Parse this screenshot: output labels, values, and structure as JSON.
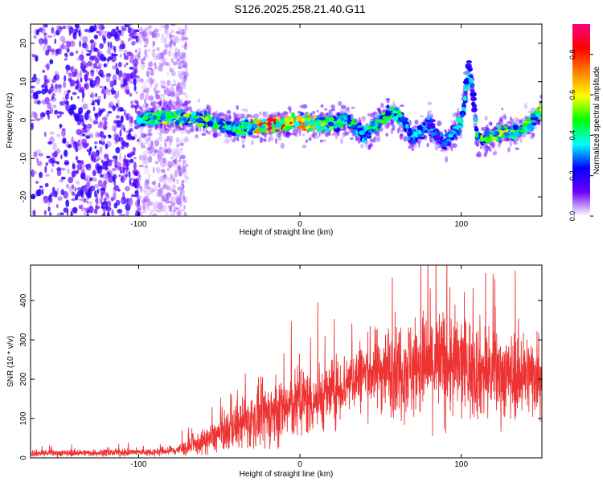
{
  "title": "S126.2025.258.21.40.G11",
  "chart_data": [
    {
      "type": "heatmap",
      "title": "S126.2025.258.21.40.G11",
      "xlabel": "Height of straight line (km)",
      "ylabel": "Frequency (Hz)",
      "xlim": [
        -167,
        150
      ],
      "ylim": [
        -25,
        25
      ],
      "xticks": [
        -100,
        0,
        100
      ],
      "yticks": [
        -20,
        -10,
        0,
        10,
        20
      ],
      "colorbar": {
        "label": "Normalized spectral amplitude",
        "range": [
          0.0,
          0.95
        ],
        "ticks": [
          0.0,
          0.2,
          0.4,
          0.6,
          0.8
        ],
        "tick_labels": [
          "0.0",
          "0.2",
          "0.4",
          "0.6",
          "0.8"
        ],
        "colors": [
          "#ffffff",
          "#6f00ff",
          "#0000ff",
          "#00ffff",
          "#00ff00",
          "#ffff00",
          "#ff8000",
          "#ff0000",
          "#ff0080"
        ]
      },
      "noise_region_x": [
        -167,
        -80
      ],
      "ridge": {
        "x": [
          -100,
          -90,
          -80,
          -70,
          -60,
          -50,
          -40,
          -30,
          -20,
          -10,
          0,
          10,
          20,
          28,
          30,
          35,
          40,
          45,
          50,
          55,
          60,
          65,
          70,
          75,
          80,
          85,
          90,
          95,
          100,
          103,
          105,
          108,
          110,
          115,
          120,
          125,
          130,
          135,
          140,
          145,
          150
        ],
        "freq": [
          0,
          0.5,
          1,
          0.5,
          0,
          -1,
          -2,
          -2,
          -1.5,
          -1,
          -0.5,
          -1,
          -1,
          0,
          0,
          -2,
          -4,
          -2,
          0,
          2,
          1,
          -1,
          -5,
          -3,
          -1,
          -4,
          -6,
          -3,
          -1,
          8,
          14,
          4,
          -5,
          -5,
          -4,
          -3,
          -3,
          -3,
          -2,
          0,
          3
        ],
        "amp": [
          0.35,
          0.5,
          0.55,
          0.5,
          0.5,
          0.45,
          0.45,
          0.5,
          0.9,
          0.75,
          0.7,
          0.6,
          0.55,
          0.35,
          0.5,
          0.4,
          0.35,
          0.4,
          0.45,
          0.45,
          0.4,
          0.35,
          0.3,
          0.35,
          0.35,
          0.3,
          0.3,
          0.35,
          0.4,
          0.35,
          0.3,
          0.3,
          0.45,
          0.5,
          0.5,
          0.55,
          0.5,
          0.45,
          0.5,
          0.5,
          0.5
        ]
      }
    },
    {
      "type": "line",
      "xlabel": "Height of straight line (km)",
      "ylabel": "SNR (10 * v/v)",
      "xlim": [
        -167,
        150
      ],
      "ylim": [
        0,
        490
      ],
      "xticks": [
        -100,
        0,
        100
      ],
      "yticks": [
        0,
        100,
        200,
        300,
        400
      ],
      "series": [
        {
          "name": "SNR",
          "color": "#ee3333",
          "envelope_x": [
            -167,
            -120,
            -90,
            -80,
            -70,
            -60,
            -50,
            -40,
            -30,
            -20,
            -10,
            0,
            10,
            20,
            30,
            40,
            50,
            60,
            70,
            80,
            90,
            100,
            110,
            120,
            130,
            140,
            150
          ],
          "mean": [
            12,
            13,
            15,
            18,
            25,
            40,
            60,
            80,
            95,
            110,
            125,
            140,
            150,
            165,
            195,
            215,
            225,
            230,
            230,
            240,
            240,
            235,
            225,
            215,
            210,
            210,
            215
          ],
          "spread": [
            8,
            8,
            9,
            12,
            18,
            28,
            40,
            55,
            65,
            75,
            80,
            85,
            80,
            75,
            75,
            85,
            95,
            110,
            120,
            130,
            130,
            125,
            115,
            105,
            100,
            95,
            100
          ]
        }
      ]
    }
  ]
}
